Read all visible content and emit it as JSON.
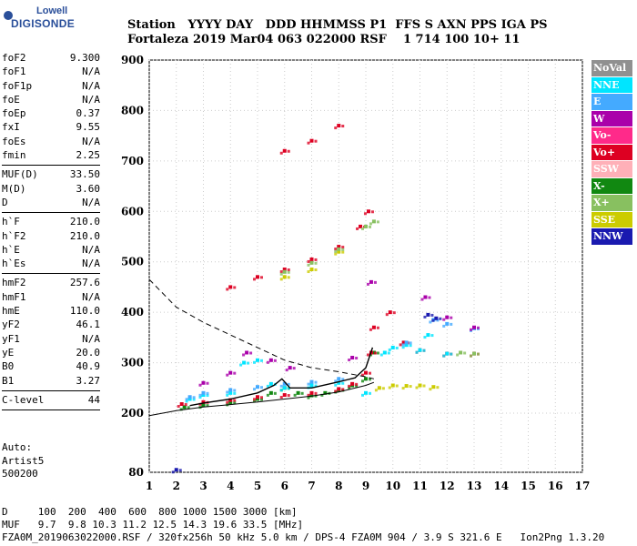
{
  "logo": {
    "line1": "Lowell",
    "line2": "DIGISONDE"
  },
  "header": {
    "line1": "Station   YYYY DAY   DDD HHMMSS P1  FFS S AXN PPS IGA PS",
    "line2": "Fortaleza 2019 Mar04 063 022000 RSF    1 714 100 10+ 11"
  },
  "sidebar": {
    "groups": [
      [
        [
          "foF2",
          "9.300"
        ],
        [
          "foF1",
          "N/A"
        ],
        [
          "foF1p",
          "N/A"
        ],
        [
          "foE",
          "N/A"
        ],
        [
          "foEp",
          "0.37"
        ],
        [
          "fxI",
          "9.55"
        ],
        [
          "foEs",
          "N/A"
        ],
        [
          "fmin",
          "2.25"
        ]
      ],
      [
        [
          "MUF(D)",
          "33.50"
        ],
        [
          "M(D)",
          "3.60"
        ],
        [
          "D",
          "N/A"
        ]
      ],
      [
        [
          "h`F",
          "210.0"
        ],
        [
          "h`F2",
          "210.0"
        ],
        [
          "h`E",
          "N/A"
        ],
        [
          "h`Es",
          "N/A"
        ]
      ],
      [
        [
          "hmF2",
          "257.6"
        ],
        [
          "hmF1",
          "N/A"
        ],
        [
          "hmE",
          "110.0"
        ],
        [
          "yF2",
          "46.1"
        ],
        [
          "yF1",
          "N/A"
        ],
        [
          "yE",
          "20.0"
        ],
        [
          "B0",
          "40.9"
        ],
        [
          "B1",
          "3.27"
        ]
      ],
      [
        [
          "C-level",
          "44"
        ]
      ]
    ],
    "auto": [
      "Auto:",
      "Artist5",
      "500200"
    ]
  },
  "legend": [
    {
      "label": "NoVal",
      "color": "#909090"
    },
    {
      "label": "NNE",
      "color": "#00e5ff"
    },
    {
      "label": "E",
      "color": "#44aaff"
    },
    {
      "label": "W",
      "color": "#aa00aa"
    },
    {
      "label": "Vo-",
      "color": "#ff2a8a"
    },
    {
      "label": "Vo+",
      "color": "#dd0022"
    },
    {
      "label": "SSW",
      "color": "#ffb0b8"
    },
    {
      "label": "X-",
      "color": "#118811"
    },
    {
      "label": "X+",
      "color": "#88c060"
    },
    {
      "label": "SSE",
      "color": "#cccc00"
    },
    {
      "label": "NNW",
      "color": "#1a1ab0"
    }
  ],
  "bottom": {
    "line1": "D     100  200  400  600  800 1000 1500 3000 [km]",
    "line2": "MUF   9.7  9.8 10.3 11.2 12.5 14.3 19.6 33.5 [MHz]",
    "line3": "FZA0M_2019063022000.RSF / 320fx256h 50 kHz 5.0 km / DPS-4 FZA0M 904 / 3.9 S 321.6 E   Ion2Png 1.3.20"
  },
  "chart_data": {
    "type": "scatter",
    "x_ticks": [
      1,
      2,
      3,
      4,
      5,
      6,
      7,
      8,
      9,
      10,
      11,
      12,
      13,
      14,
      15,
      16,
      17
    ],
    "y_ticks": [
      80,
      200,
      300,
      400,
      500,
      600,
      700,
      800,
      900
    ],
    "xlim": [
      1,
      17
    ],
    "ylim": [
      80,
      900
    ],
    "grid": true,
    "series": [
      {
        "name": "X-",
        "color": "#118811",
        "points": [
          [
            2.3,
            212
          ],
          [
            3,
            216
          ],
          [
            4,
            221
          ],
          [
            5,
            228
          ],
          [
            5.5,
            240
          ],
          [
            6,
            250
          ],
          [
            6.5,
            240
          ],
          [
            7,
            235
          ],
          [
            7.5,
            240
          ],
          [
            8,
            246
          ],
          [
            8.5,
            255
          ],
          [
            9,
            268
          ],
          [
            9.3,
            320
          ]
        ]
      },
      {
        "name": "Vo+",
        "color": "#dd0022",
        "points": [
          [
            2.2,
            218
          ],
          [
            3,
            222
          ],
          [
            4,
            226
          ],
          [
            5,
            232
          ],
          [
            6,
            236
          ],
          [
            7,
            240
          ],
          [
            8,
            248
          ],
          [
            8.5,
            258
          ],
          [
            9,
            280
          ],
          [
            9.2,
            320
          ],
          [
            9.3,
            370
          ],
          [
            4,
            450
          ],
          [
            5,
            470
          ],
          [
            6,
            485
          ],
          [
            7,
            505
          ],
          [
            8,
            530
          ],
          [
            8.8,
            570
          ],
          [
            9.1,
            600
          ],
          [
            6,
            720
          ],
          [
            7,
            740
          ],
          [
            8,
            770
          ],
          [
            9.9,
            400
          ],
          [
            10.4,
            340
          ],
          [
            11,
            325
          ],
          [
            12,
            318
          ],
          [
            13,
            318
          ]
        ]
      },
      {
        "name": "NNE",
        "color": "#00e5ff",
        "points": [
          [
            2.5,
            228
          ],
          [
            3,
            236
          ],
          [
            4,
            240
          ],
          [
            4.5,
            300
          ],
          [
            5,
            305
          ],
          [
            5.5,
            258
          ],
          [
            6,
            250
          ],
          [
            7,
            255
          ],
          [
            8,
            260
          ],
          [
            9,
            240
          ],
          [
            9.7,
            320
          ],
          [
            10,
            330
          ],
          [
            10.5,
            335
          ],
          [
            11,
            325
          ],
          [
            11.3,
            355
          ],
          [
            12,
            318
          ]
        ]
      },
      {
        "name": "E",
        "color": "#44aaff",
        "points": [
          [
            2.5,
            232
          ],
          [
            3,
            240
          ],
          [
            4,
            246
          ],
          [
            5,
            252
          ],
          [
            6,
            258
          ],
          [
            7,
            262
          ],
          [
            8,
            268
          ],
          [
            10.5,
            340
          ],
          [
            11.5,
            385
          ],
          [
            12,
            377
          ],
          [
            13,
            368
          ]
        ]
      },
      {
        "name": "W",
        "color": "#aa00aa",
        "points": [
          [
            3,
            260
          ],
          [
            4,
            280
          ],
          [
            4.6,
            320
          ],
          [
            5.5,
            305
          ],
          [
            6.2,
            290
          ],
          [
            8.5,
            310
          ],
          [
            9.2,
            460
          ],
          [
            11.2,
            430
          ],
          [
            12,
            390
          ],
          [
            13,
            370
          ]
        ]
      },
      {
        "name": "SSE",
        "color": "#cccc00",
        "points": [
          [
            9.5,
            250
          ],
          [
            10,
            255
          ],
          [
            10.5,
            254
          ],
          [
            11,
            255
          ],
          [
            11.5,
            252
          ],
          [
            6,
            470
          ],
          [
            7,
            485
          ],
          [
            8,
            520
          ]
        ]
      },
      {
        "name": "NNW",
        "color": "#1a1ab0",
        "points": [
          [
            11.3,
            395
          ],
          [
            11.6,
            388
          ],
          [
            2,
            85
          ]
        ]
      },
      {
        "name": "X+",
        "color": "#88c060",
        "points": [
          [
            6,
            480
          ],
          [
            7,
            498
          ],
          [
            8,
            525
          ],
          [
            9,
            570
          ],
          [
            9.3,
            580
          ],
          [
            12.5,
            320
          ],
          [
            13,
            318
          ]
        ]
      }
    ],
    "profile_solid": [
      [
        1,
        195
      ],
      [
        2,
        205
      ],
      [
        3,
        212
      ],
      [
        4,
        217
      ],
      [
        5,
        222
      ],
      [
        6,
        228
      ],
      [
        7,
        234
      ],
      [
        8,
        242
      ],
      [
        9,
        255
      ],
      [
        9.3,
        261
      ]
    ],
    "profile_dashed": [
      [
        1,
        465
      ],
      [
        2,
        410
      ],
      [
        3,
        380
      ],
      [
        4,
        355
      ],
      [
        5,
        330
      ],
      [
        6,
        305
      ],
      [
        7,
        290
      ],
      [
        8,
        282
      ],
      [
        9,
        272
      ],
      [
        9.3,
        268
      ]
    ],
    "trace_black": [
      [
        2.5,
        215
      ],
      [
        3,
        220
      ],
      [
        4,
        228
      ],
      [
        5,
        240
      ],
      [
        5.6,
        255
      ],
      [
        5.9,
        268
      ],
      [
        6.2,
        250
      ],
      [
        7,
        250
      ],
      [
        8,
        262
      ],
      [
        8.6,
        270
      ],
      [
        9,
        290
      ],
      [
        9.25,
        330
      ]
    ]
  }
}
